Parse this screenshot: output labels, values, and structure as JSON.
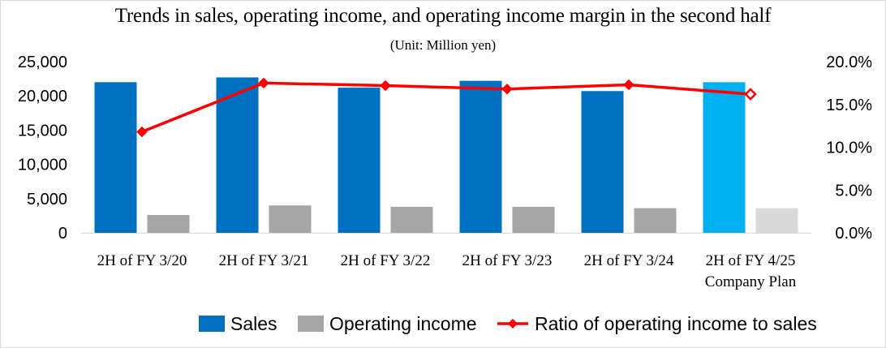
{
  "chart_data": {
    "type": "bar",
    "title": "Trends in sales, operating income, and operating income margin in the second half",
    "subtitle": "(Unit: Million yen)",
    "categories": [
      [
        "2H of FY 3/20"
      ],
      [
        "2H of FY 3/21"
      ],
      [
        "2H of FY 3/22"
      ],
      [
        "2H of FY 3/23"
      ],
      [
        "2H of FY 3/24"
      ],
      [
        "2H of FY 4/25",
        "Company Plan"
      ]
    ],
    "series": [
      {
        "name": "Sales",
        "kind": "bar",
        "axis": "left",
        "color": "#0070C0",
        "plan_color": "#00B0F0",
        "values": [
          22000,
          22700,
          21200,
          22200,
          20700,
          22000
        ]
      },
      {
        "name": "Operating income",
        "kind": "bar",
        "axis": "left",
        "color": "#A6A6A6",
        "plan_color": "#D9D9D9",
        "values": [
          2600,
          4000,
          3800,
          3800,
          3600,
          3600
        ]
      },
      {
        "name": "Ratio of operating income to sales",
        "kind": "line",
        "axis": "right",
        "color": "#FF0000",
        "values": [
          11.8,
          17.5,
          17.2,
          16.8,
          17.3,
          16.2
        ]
      }
    ],
    "ylim_left": [
      0,
      25000
    ],
    "yticks_left": [
      "0",
      "5,000",
      "10,000",
      "15,000",
      "20,000",
      "25,000"
    ],
    "ylim_right": [
      0,
      20
    ],
    "yticks_right": [
      "0.0%",
      "5.0%",
      "10.0%",
      "15.0%",
      "20.0%"
    ],
    "grid": false,
    "legend": "bottom"
  }
}
